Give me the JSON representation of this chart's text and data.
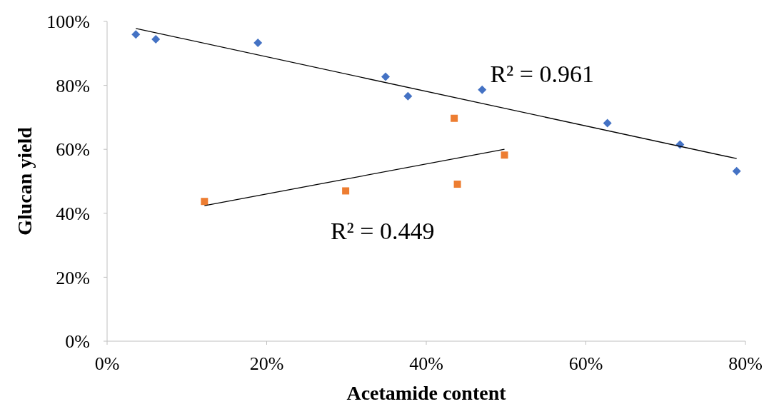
{
  "chart_data": {
    "type": "scatter",
    "xlabel": "Acetamide content",
    "ylabel": "Glucan yield",
    "xlim": [
      0,
      80
    ],
    "ylim": [
      0,
      100
    ],
    "xticks": [
      {
        "value": 0,
        "label": "0%"
      },
      {
        "value": 20,
        "label": "20%"
      },
      {
        "value": 40,
        "label": "40%"
      },
      {
        "value": 60,
        "label": "60%"
      },
      {
        "value": 80,
        "label": "80%"
      }
    ],
    "yticks": [
      {
        "value": 0,
        "label": "0%"
      },
      {
        "value": 20,
        "label": "20%"
      },
      {
        "value": 40,
        "label": "40%"
      },
      {
        "value": 60,
        "label": "60%"
      },
      {
        "value": 80,
        "label": "80%"
      },
      {
        "value": 100,
        "label": "100%"
      }
    ],
    "grid": false,
    "series": [
      {
        "type": "scatter",
        "marker": "diamond",
        "color": "#4472c4",
        "x": [
          3.6,
          6.1,
          18.9,
          34.9,
          37.7,
          47.0,
          62.7,
          71.8,
          78.9
        ],
        "values": [
          95.9,
          94.4,
          93.3,
          82.7,
          76.6,
          78.6,
          68.2,
          61.5,
          53.2
        ]
      },
      {
        "type": "scatter",
        "marker": "square",
        "color": "#ed7d31",
        "x": [
          12.2,
          29.9,
          43.5,
          43.9,
          49.8
        ],
        "values": [
          43.7,
          47.0,
          69.7,
          49.1,
          58.2
        ]
      },
      {
        "type": "line",
        "marker": "none",
        "color": "#000000",
        "x": [
          3.6,
          78.9
        ],
        "values": [
          97.8,
          57.1
        ]
      },
      {
        "type": "line",
        "marker": "none",
        "color": "#000000",
        "x": [
          12.2,
          49.8
        ],
        "values": [
          42.4,
          60.0
        ]
      }
    ],
    "annotations": [
      "R² = 0.961",
      "R² = 0.449"
    ]
  }
}
